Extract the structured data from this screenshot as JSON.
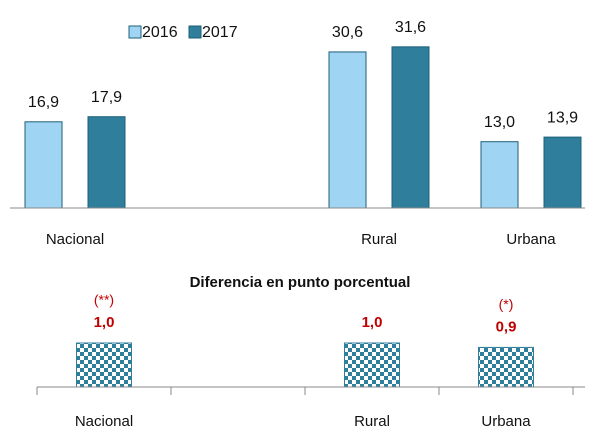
{
  "chart_data": [
    {
      "type": "bar",
      "categories": [
        "Nacional",
        null,
        "Rural",
        "Urbana"
      ],
      "series": [
        {
          "name": "2016",
          "color": "#9fd4f2",
          "values": [
            16.9,
            null,
            30.6,
            13.0
          ],
          "value_labels": [
            "16,9",
            null,
            "30,6",
            "13,0"
          ]
        },
        {
          "name": "2017",
          "color": "#2f7f9c",
          "values": [
            17.9,
            null,
            31.6,
            13.9
          ],
          "value_labels": [
            "17,9",
            null,
            "31,6",
            "13,9"
          ]
        }
      ],
      "ylim": [
        0,
        40
      ],
      "legend": "top"
    },
    {
      "type": "bar",
      "title": "Diferencia en punto porcentual",
      "categories": [
        "Nacional",
        null,
        "Rural",
        "Urbana"
      ],
      "values": [
        1.0,
        null,
        1.0,
        0.9
      ],
      "value_labels": [
        "1,0",
        null,
        "1,0",
        "0,9"
      ],
      "annotations": [
        "(**)",
        null,
        null,
        "(*)"
      ],
      "color": "#2f7f9c",
      "ylim": [
        0,
        2
      ]
    }
  ]
}
